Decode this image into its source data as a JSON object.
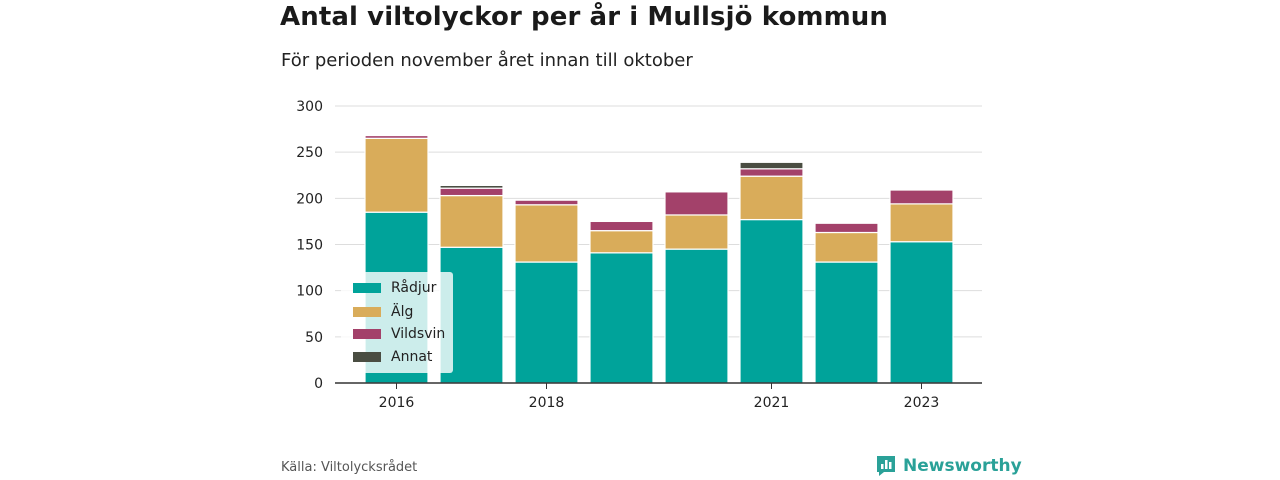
{
  "header": {
    "title": "Antal viltolyckor per år i Mullsjö kommun",
    "subtitle": "För perioden november året innan till oktober"
  },
  "footer": {
    "source": "Källa: Viltolycksrådet",
    "brand": "Newsworthy"
  },
  "colors": {
    "radjur": "#00a39a",
    "alg": "#d9ac5a",
    "vildsvin": "#a3416a",
    "annat": "#4a4d42",
    "brand": "#2aa198"
  },
  "chart_data": {
    "type": "bar",
    "stacked": true,
    "categories": [
      "2016",
      "2017",
      "2018",
      "2019",
      "2020",
      "2021",
      "2022",
      "2023"
    ],
    "x_tick_labels": [
      "2016",
      "",
      "2018",
      "",
      "",
      "2021",
      "",
      "2023"
    ],
    "y_ticks": [
      "0",
      "50",
      "100",
      "150",
      "200",
      "250",
      "300"
    ],
    "ylim": [
      0,
      300
    ],
    "grid": true,
    "legend_position": "bottom-left",
    "series": [
      {
        "name": "Rådjur",
        "color": "#00a39a",
        "values": [
          185,
          147,
          131,
          141,
          145,
          177,
          131,
          153
        ]
      },
      {
        "name": "Älg",
        "color": "#d9ac5a",
        "values": [
          80,
          56,
          62,
          24,
          37,
          47,
          32,
          41
        ]
      },
      {
        "name": "Vildsvin",
        "color": "#a3416a",
        "values": [
          3,
          8,
          5,
          10,
          25,
          8,
          10,
          15
        ]
      },
      {
        "name": "Annat",
        "color": "#4a4d42",
        "values": [
          0,
          3,
          0,
          0,
          0,
          7,
          0,
          0
        ]
      }
    ]
  }
}
